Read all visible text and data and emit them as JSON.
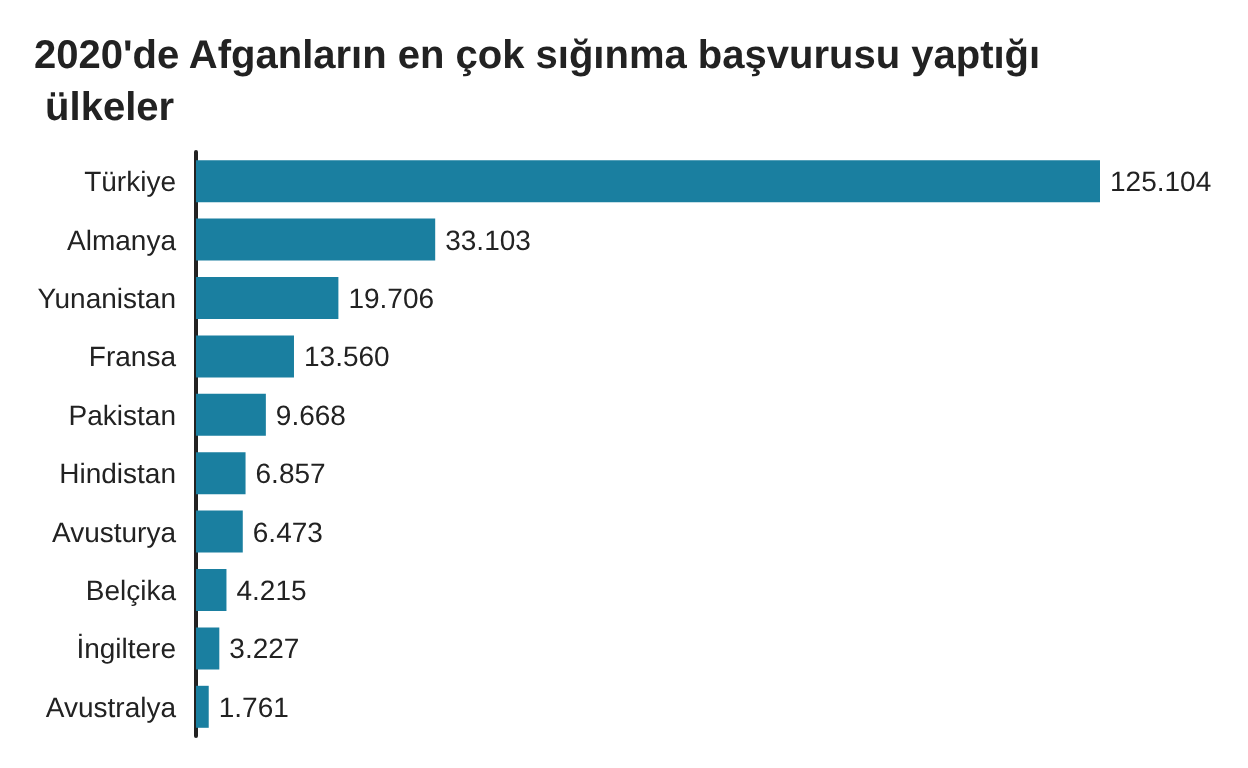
{
  "chart_data": {
    "type": "bar",
    "orientation": "horizontal",
    "title": "2020'de Afganların en çok sığınma başvurusu yaptığı ülkeler",
    "categories": [
      "Türkiye",
      "Almanya",
      "Yunanistan",
      "Fransa",
      "Pakistan",
      "Hindistan",
      "Avusturya",
      "Belçika",
      "İngiltere",
      "Avustralya"
    ],
    "values": [
      125104,
      33103,
      19706,
      13560,
      9668,
      6857,
      6473,
      4215,
      3227,
      1761
    ],
    "value_labels": [
      "125.104",
      "33.103",
      "19.706",
      "13.560",
      "9.668",
      "6.857",
      "6.473",
      "4.215",
      "3.227",
      "1.761"
    ],
    "color": "#1a7fa0",
    "tick_labels": "y"
  }
}
